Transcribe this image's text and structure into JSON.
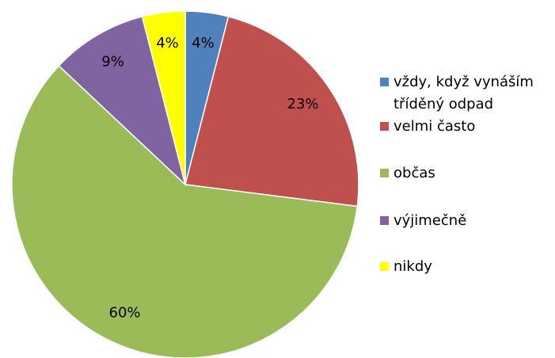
{
  "chart_data": {
    "type": "pie",
    "categories": [
      "vždy, když vynáším tříděný odpad",
      "velmi často",
      "občas",
      "výjimečně",
      "nikdy"
    ],
    "values": [
      4,
      23,
      60,
      9,
      4
    ],
    "value_labels": [
      "4%",
      "23%",
      "60%",
      "9%",
      "4%"
    ],
    "colors": [
      "#4f81bd",
      "#c0504d",
      "#9bbb59",
      "#8064a2",
      "#ffff00"
    ],
    "legend": "right"
  }
}
